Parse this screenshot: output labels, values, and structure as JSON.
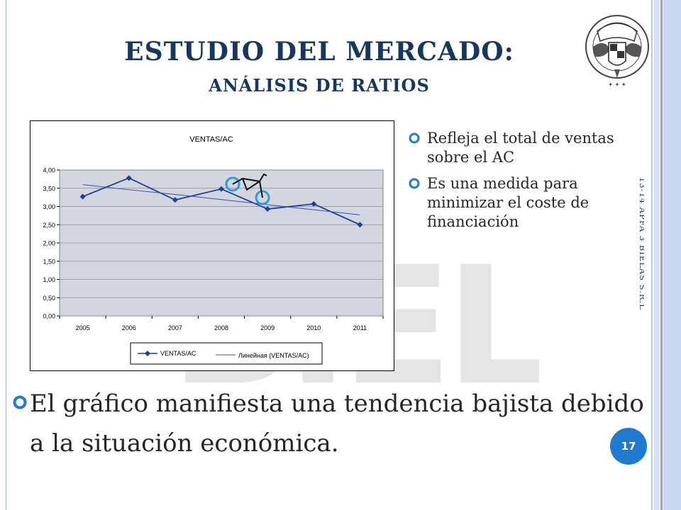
{
  "slide": {
    "title_line1": "ESTUDIO DEL MERCADO:",
    "title_line2": "ANÁLISIS DE RATIOS",
    "bullets": [
      "Refleja el total de ventas sobre el AC",
      "Es una medida para minimizar el coste de financiación"
    ],
    "main_text": "El  gráfico manifiesta una tendencia bajista debido a la situación económica.",
    "side_text": "13-14 APFA 3 BIELAS S.R.L",
    "page_number": "17",
    "accent_color": "#1f7ad0",
    "title_color": "#17375e",
    "crest_icon": "university-crest-icon",
    "watermark": "biela-logo-watermark"
  },
  "chart_data": {
    "type": "line",
    "title": "VENTAS/AC",
    "categories": [
      "2005",
      "2006",
      "2007",
      "2008",
      "2009",
      "2010",
      "2011"
    ],
    "series": [
      {
        "name": "VENTAS/AC",
        "values": [
          3.27,
          3.78,
          3.18,
          3.48,
          2.93,
          3.07,
          2.5
        ],
        "color": "#1f3f9a"
      },
      {
        "name": "Линейная (VENTAS/AC)",
        "values": [
          3.6,
          3.46,
          3.33,
          3.19,
          3.05,
          2.91,
          2.77
        ],
        "color": "#3b4fb5",
        "trendline": true
      }
    ],
    "yticks": [
      "0,00",
      "0,50",
      "1,00",
      "1,50",
      "2,00",
      "2,50",
      "3,00",
      "3,50",
      "4,00"
    ],
    "ylim": [
      0,
      4
    ],
    "grid": true,
    "legend": "bottom",
    "plot_background": "#d4d6df",
    "bike_icon": "bicycle-icon"
  }
}
